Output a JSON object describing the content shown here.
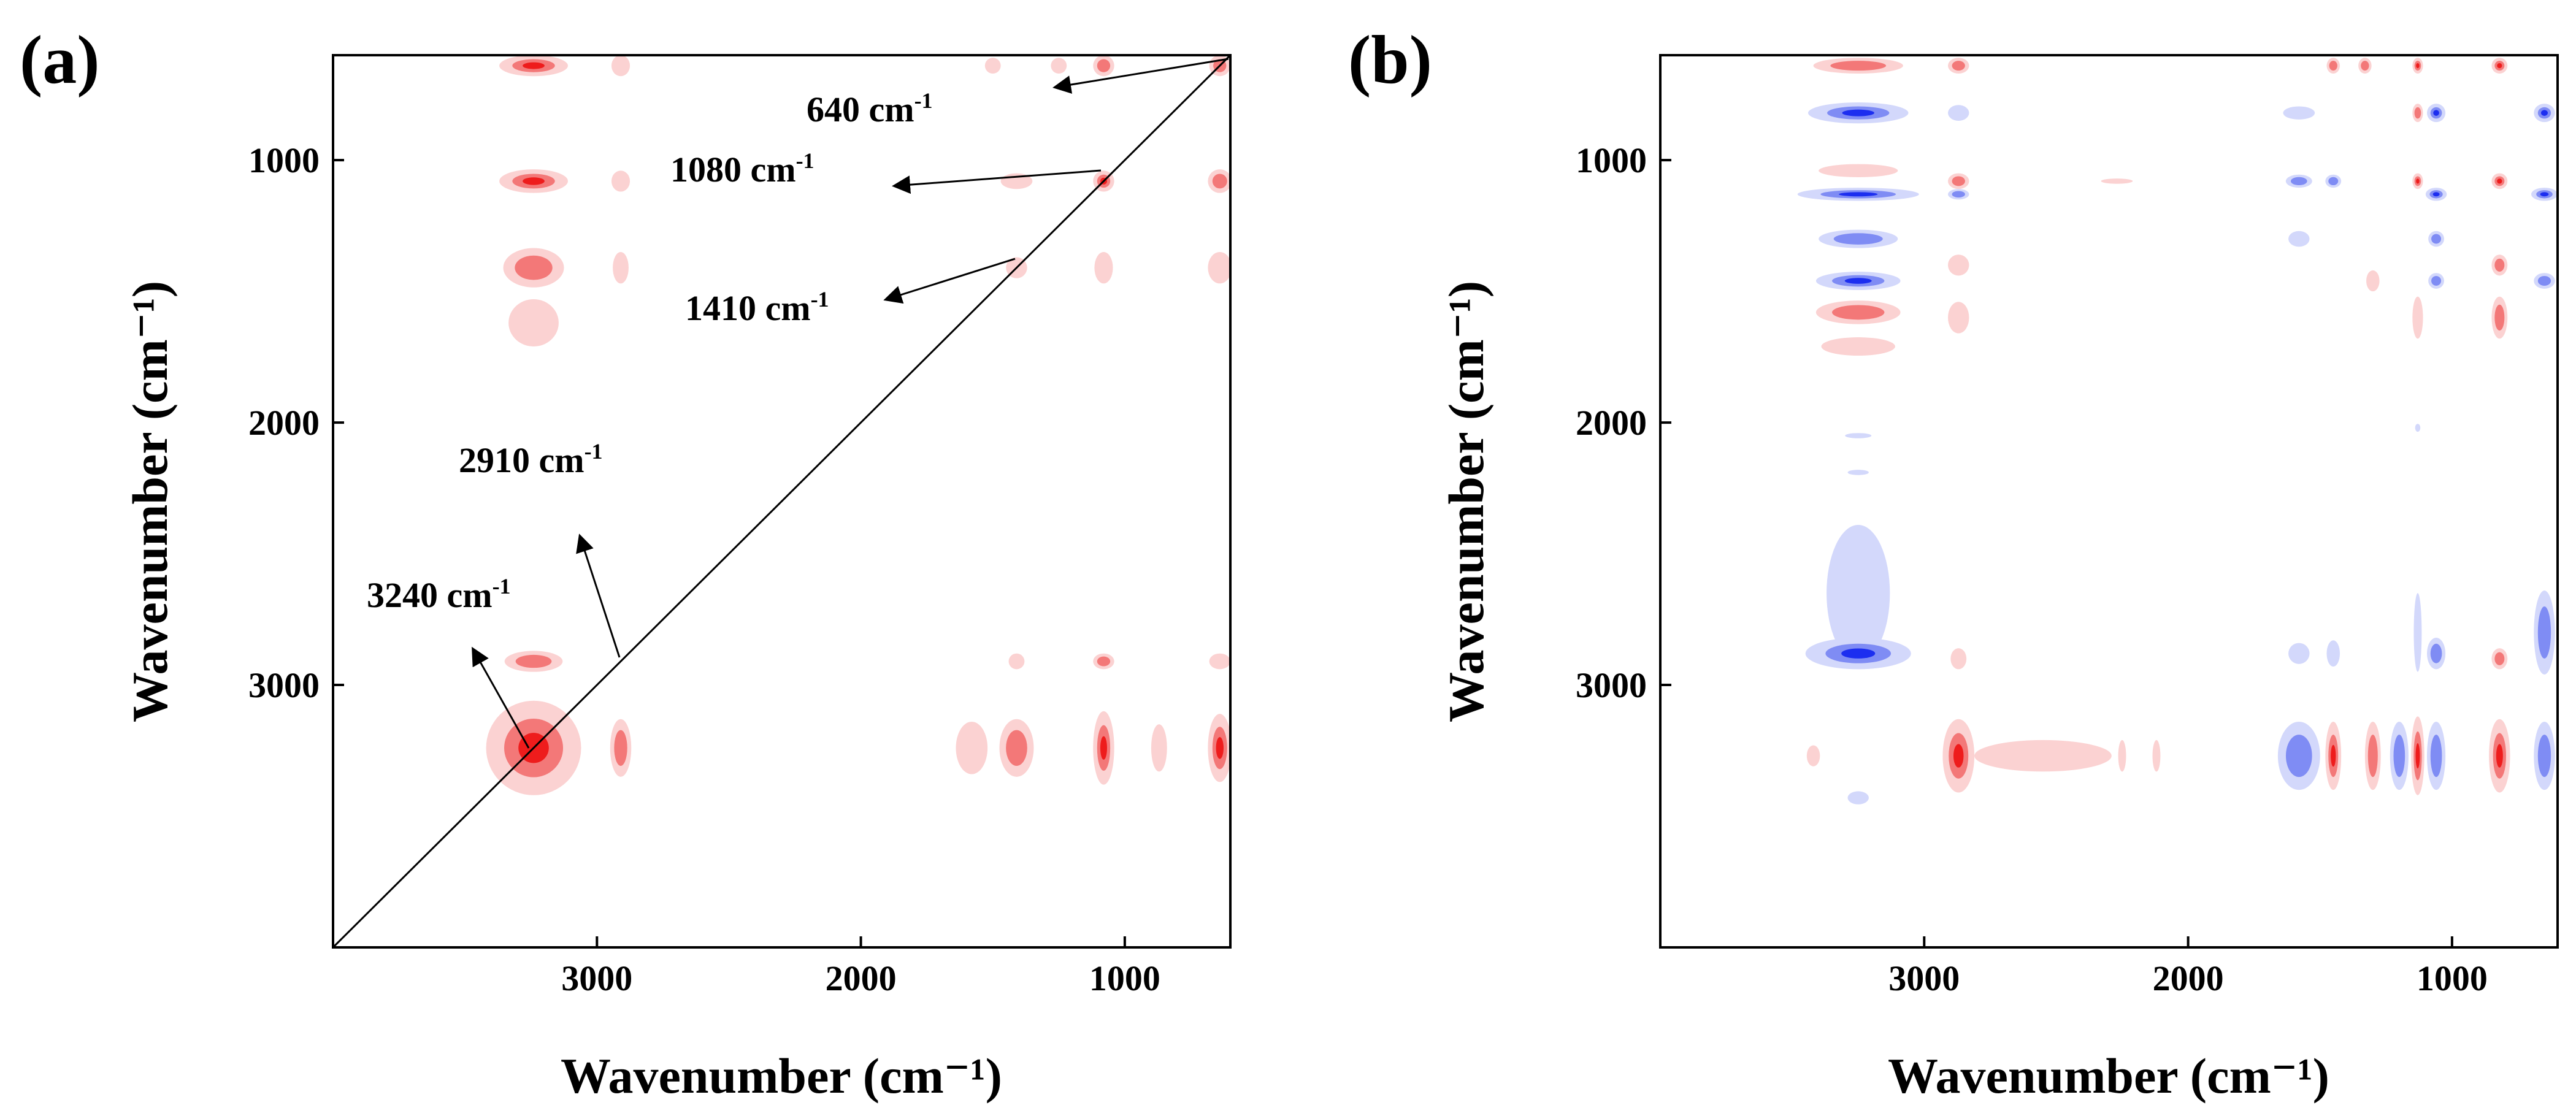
{
  "figure": {
    "panel_a_label": "(a)",
    "panel_b_label": "(b)"
  },
  "colors": {
    "positive_strong": "#ee1c1c",
    "positive_mid": "#f37878",
    "positive_light": "#fbd2d2",
    "negative_strong": "#1c2ef0",
    "negative_mid": "#7f8cf4",
    "negative_light": "#d3d8fb",
    "axis": "#000000",
    "background": "#ffffff"
  },
  "chart_data": [
    {
      "type": "heatmap",
      "subtype": "2D correlation synchronous map",
      "panel": "(a)",
      "xlabel": "Wavenumber (cm⁻¹)",
      "ylabel": "Wavenumber (cm⁻¹)",
      "xlim": [
        4000,
        600
      ],
      "ylim": [
        600,
        4000
      ],
      "xticks": [
        3000,
        2000,
        1000
      ],
      "yticks": [
        1000,
        2000,
        3000
      ],
      "xtick_labels": [
        "3000",
        "2000",
        "1000"
      ],
      "ytick_labels": [
        "1000",
        "2000",
        "3000"
      ],
      "diagonal": true,
      "annotations": [
        {
          "text": "640 cm",
          "sup": "-1",
          "peak": 640
        },
        {
          "text": "1080 cm",
          "sup": "-1",
          "peak": 1080
        },
        {
          "text": "1410 cm",
          "sup": "-1",
          "peak": 1410
        },
        {
          "text": "2910 cm",
          "sup": "-1",
          "peak": 2910
        },
        {
          "text": "3240 cm",
          "sup": "-1",
          "peak": 3240
        }
      ],
      "peaks": [
        3240,
        2910,
        1410,
        1080,
        640
      ],
      "cross_peaks": [
        {
          "x": 3240,
          "y": 3240,
          "sign": "+",
          "level": 3,
          "wx": 180,
          "wy": 180
        },
        {
          "x": 640,
          "y": 3240,
          "sign": "+",
          "level": 3,
          "wx": 45,
          "wy": 130
        },
        {
          "x": 1080,
          "y": 3240,
          "sign": "+",
          "level": 3,
          "wx": 40,
          "wy": 140
        },
        {
          "x": 1410,
          "y": 3240,
          "sign": "+",
          "level": 2,
          "wx": 65,
          "wy": 110
        },
        {
          "x": 1580,
          "y": 3240,
          "sign": "+",
          "level": 1,
          "wx": 60,
          "wy": 100
        },
        {
          "x": 2910,
          "y": 3240,
          "sign": "+",
          "level": 2,
          "wx": 40,
          "wy": 110
        },
        {
          "x": 870,
          "y": 3240,
          "sign": "+",
          "level": 1,
          "wx": 30,
          "wy": 90
        },
        {
          "x": 3240,
          "y": 640,
          "sign": "+",
          "level": 3,
          "wx": 130,
          "wy": 40
        },
        {
          "x": 3240,
          "y": 1080,
          "sign": "+",
          "level": 3,
          "wx": 130,
          "wy": 45
        },
        {
          "x": 3240,
          "y": 1410,
          "sign": "+",
          "level": 2,
          "wx": 115,
          "wy": 75
        },
        {
          "x": 3240,
          "y": 1620,
          "sign": "+",
          "level": 1,
          "wx": 95,
          "wy": 90
        },
        {
          "x": 3240,
          "y": 2910,
          "sign": "+",
          "level": 2,
          "wx": 110,
          "wy": 40
        },
        {
          "x": 2910,
          "y": 640,
          "sign": "+",
          "level": 1,
          "wx": 35,
          "wy": 40
        },
        {
          "x": 2910,
          "y": 1080,
          "sign": "+",
          "level": 1,
          "wx": 35,
          "wy": 40
        },
        {
          "x": 2910,
          "y": 1410,
          "sign": "+",
          "level": 1,
          "wx": 30,
          "wy": 60
        },
        {
          "x": 1080,
          "y": 640,
          "sign": "+",
          "level": 2,
          "wx": 40,
          "wy": 40
        },
        {
          "x": 640,
          "y": 640,
          "sign": "+",
          "level": 2,
          "wx": 40,
          "wy": 40
        },
        {
          "x": 640,
          "y": 1080,
          "sign": "+",
          "level": 2,
          "wx": 45,
          "wy": 45
        },
        {
          "x": 1080,
          "y": 1080,
          "sign": "+",
          "level": 3,
          "wx": 40,
          "wy": 40
        },
        {
          "x": 1410,
          "y": 1080,
          "sign": "+",
          "level": 1,
          "wx": 60,
          "wy": 30
        },
        {
          "x": 640,
          "y": 1410,
          "sign": "+",
          "level": 1,
          "wx": 45,
          "wy": 60
        },
        {
          "x": 1080,
          "y": 1410,
          "sign": "+",
          "level": 1,
          "wx": 35,
          "wy": 60
        },
        {
          "x": 1410,
          "y": 1410,
          "sign": "+",
          "level": 1,
          "wx": 40,
          "wy": 40
        },
        {
          "x": 1080,
          "y": 2910,
          "sign": "+",
          "level": 2,
          "wx": 40,
          "wy": 30
        },
        {
          "x": 640,
          "y": 2910,
          "sign": "+",
          "level": 1,
          "wx": 40,
          "wy": 30
        },
        {
          "x": 1410,
          "y": 2910,
          "sign": "+",
          "level": 1,
          "wx": 30,
          "wy": 30
        },
        {
          "x": 1250,
          "y": 640,
          "sign": "+",
          "level": 1,
          "wx": 30,
          "wy": 30
        },
        {
          "x": 1500,
          "y": 640,
          "sign": "+",
          "level": 1,
          "wx": 30,
          "wy": 30
        }
      ]
    },
    {
      "type": "heatmap",
      "subtype": "2D correlation asynchronous map",
      "panel": "(b)",
      "xlabel": "Wavenumber (cm⁻¹)",
      "ylabel": "Wavenumber (cm⁻¹)",
      "xlim": [
        4000,
        600
      ],
      "ylim": [
        600,
        4000
      ],
      "xticks": [
        3000,
        2000,
        1000
      ],
      "yticks": [
        1000,
        2000,
        3000
      ],
      "xtick_labels": [
        "3000",
        "2000",
        "1000"
      ],
      "ytick_labels": [
        "1000",
        "2000",
        "3000"
      ],
      "diagonal": false,
      "cross_peaks": [
        {
          "x": 3250,
          "y": 640,
          "sign": "+",
          "level": 2,
          "wx": 170,
          "wy": 30
        },
        {
          "x": 3250,
          "y": 820,
          "sign": "-",
          "level": 3,
          "wx": 190,
          "wy": 40
        },
        {
          "x": 3250,
          "y": 1040,
          "sign": "+",
          "level": 1,
          "wx": 150,
          "wy": 25
        },
        {
          "x": 3250,
          "y": 1130,
          "sign": "-",
          "level": 3,
          "wx": 230,
          "wy": 25
        },
        {
          "x": 3250,
          "y": 1300,
          "sign": "-",
          "level": 2,
          "wx": 150,
          "wy": 35
        },
        {
          "x": 3250,
          "y": 1460,
          "sign": "-",
          "level": 3,
          "wx": 160,
          "wy": 35
        },
        {
          "x": 3250,
          "y": 1580,
          "sign": "+",
          "level": 2,
          "wx": 160,
          "wy": 45
        },
        {
          "x": 3250,
          "y": 1710,
          "sign": "+",
          "level": 1,
          "wx": 140,
          "wy": 35
        },
        {
          "x": 3250,
          "y": 2650,
          "sign": "-",
          "level": 1,
          "wx": 120,
          "wy": 260
        },
        {
          "x": 3250,
          "y": 2880,
          "sign": "-",
          "level": 3,
          "wx": 200,
          "wy": 60
        },
        {
          "x": 2870,
          "y": 640,
          "sign": "+",
          "level": 2,
          "wx": 40,
          "wy": 30
        },
        {
          "x": 2870,
          "y": 820,
          "sign": "-",
          "level": 1,
          "wx": 40,
          "wy": 30
        },
        {
          "x": 2870,
          "y": 1080,
          "sign": "+",
          "level": 2,
          "wx": 40,
          "wy": 30
        },
        {
          "x": 2870,
          "y": 1130,
          "sign": "-",
          "level": 2,
          "wx": 40,
          "wy": 20
        },
        {
          "x": 2870,
          "y": 1400,
          "sign": "+",
          "level": 1,
          "wx": 40,
          "wy": 40
        },
        {
          "x": 2870,
          "y": 1600,
          "sign": "+",
          "level": 1,
          "wx": 40,
          "wy": 60
        },
        {
          "x": 2870,
          "y": 2900,
          "sign": "+",
          "level": 1,
          "wx": 30,
          "wy": 40
        },
        {
          "x": 2870,
          "y": 3270,
          "sign": "+",
          "level": 3,
          "wx": 60,
          "wy": 140
        },
        {
          "x": 2550,
          "y": 3270,
          "sign": "+",
          "level": 1,
          "wx": 260,
          "wy": 60
        },
        {
          "x": 3420,
          "y": 3270,
          "sign": "+",
          "level": 1,
          "wx": 25,
          "wy": 40
        },
        {
          "x": 3250,
          "y": 3430,
          "sign": "-",
          "level": 1,
          "wx": 40,
          "wy": 25
        },
        {
          "x": 1580,
          "y": 3270,
          "sign": "-",
          "level": 2,
          "wx": 80,
          "wy": 130
        },
        {
          "x": 1450,
          "y": 3270,
          "sign": "+",
          "level": 3,
          "wx": 30,
          "wy": 130
        },
        {
          "x": 1300,
          "y": 3270,
          "sign": "+",
          "level": 2,
          "wx": 30,
          "wy": 130
        },
        {
          "x": 1200,
          "y": 3270,
          "sign": "-",
          "level": 2,
          "wx": 35,
          "wy": 130
        },
        {
          "x": 1130,
          "y": 3270,
          "sign": "+",
          "level": 3,
          "wx": 25,
          "wy": 150
        },
        {
          "x": 1060,
          "y": 3270,
          "sign": "-",
          "level": 2,
          "wx": 35,
          "wy": 130
        },
        {
          "x": 820,
          "y": 3270,
          "sign": "+",
          "level": 3,
          "wx": 40,
          "wy": 140
        },
        {
          "x": 650,
          "y": 3270,
          "sign": "-",
          "level": 2,
          "wx": 40,
          "wy": 130
        },
        {
          "x": 1130,
          "y": 640,
          "sign": "+",
          "level": 3,
          "wx": 20,
          "wy": 30
        },
        {
          "x": 1330,
          "y": 640,
          "sign": "+",
          "level": 2,
          "wx": 25,
          "wy": 30
        },
        {
          "x": 1450,
          "y": 640,
          "sign": "+",
          "level": 2,
          "wx": 25,
          "wy": 30
        },
        {
          "x": 820,
          "y": 640,
          "sign": "+",
          "level": 3,
          "wx": 30,
          "wy": 30
        },
        {
          "x": 1580,
          "y": 820,
          "sign": "-",
          "level": 1,
          "wx": 60,
          "wy": 25
        },
        {
          "x": 1060,
          "y": 820,
          "sign": "-",
          "level": 3,
          "wx": 35,
          "wy": 35
        },
        {
          "x": 1130,
          "y": 820,
          "sign": "+",
          "level": 2,
          "wx": 20,
          "wy": 35
        },
        {
          "x": 650,
          "y": 820,
          "sign": "-",
          "level": 3,
          "wx": 40,
          "wy": 35
        },
        {
          "x": 820,
          "y": 1080,
          "sign": "+",
          "level": 3,
          "wx": 30,
          "wy": 30
        },
        {
          "x": 1130,
          "y": 1080,
          "sign": "+",
          "level": 3,
          "wx": 20,
          "wy": 30
        },
        {
          "x": 1450,
          "y": 1080,
          "sign": "-",
          "level": 2,
          "wx": 30,
          "wy": 25
        },
        {
          "x": 1580,
          "y": 1080,
          "sign": "-",
          "level": 2,
          "wx": 50,
          "wy": 25
        },
        {
          "x": 650,
          "y": 1130,
          "sign": "-",
          "level": 3,
          "wx": 50,
          "wy": 25
        },
        {
          "x": 1060,
          "y": 1130,
          "sign": "-",
          "level": 3,
          "wx": 40,
          "wy": 25
        },
        {
          "x": 1580,
          "y": 1300,
          "sign": "-",
          "level": 1,
          "wx": 40,
          "wy": 30
        },
        {
          "x": 1060,
          "y": 1300,
          "sign": "-",
          "level": 2,
          "wx": 30,
          "wy": 30
        },
        {
          "x": 820,
          "y": 1400,
          "sign": "+",
          "level": 2,
          "wx": 30,
          "wy": 40
        },
        {
          "x": 1060,
          "y": 1460,
          "sign": "-",
          "level": 2,
          "wx": 30,
          "wy": 30
        },
        {
          "x": 650,
          "y": 1460,
          "sign": "-",
          "level": 2,
          "wx": 40,
          "wy": 30
        },
        {
          "x": 1300,
          "y": 1460,
          "sign": "+",
          "level": 1,
          "wx": 25,
          "wy": 40
        },
        {
          "x": 820,
          "y": 1600,
          "sign": "+",
          "level": 2,
          "wx": 30,
          "wy": 80
        },
        {
          "x": 1130,
          "y": 1600,
          "sign": "+",
          "level": 1,
          "wx": 20,
          "wy": 80
        },
        {
          "x": 1060,
          "y": 2880,
          "sign": "-",
          "level": 2,
          "wx": 35,
          "wy": 60
        },
        {
          "x": 1130,
          "y": 2800,
          "sign": "-",
          "level": 1,
          "wx": 15,
          "wy": 150
        },
        {
          "x": 820,
          "y": 2900,
          "sign": "+",
          "level": 2,
          "wx": 30,
          "wy": 40
        },
        {
          "x": 650,
          "y": 2800,
          "sign": "-",
          "level": 2,
          "wx": 40,
          "wy": 160
        },
        {
          "x": 1450,
          "y": 2880,
          "sign": "-",
          "level": 1,
          "wx": 25,
          "wy": 50
        },
        {
          "x": 1580,
          "y": 2880,
          "sign": "-",
          "level": 1,
          "wx": 40,
          "wy": 40
        },
        {
          "x": 2250,
          "y": 3270,
          "sign": "+",
          "level": 1,
          "wx": 15,
          "wy": 60
        },
        {
          "x": 2120,
          "y": 3270,
          "sign": "+",
          "level": 1,
          "wx": 15,
          "wy": 60
        },
        {
          "x": 2270,
          "y": 1080,
          "sign": "+",
          "level": 1,
          "wx": 60,
          "wy": 10
        },
        {
          "x": 3250,
          "y": 2050,
          "sign": "-",
          "level": 1,
          "wx": 50,
          "wy": 10
        },
        {
          "x": 3250,
          "y": 2190,
          "sign": "-",
          "level": 1,
          "wx": 40,
          "wy": 10
        },
        {
          "x": 1130,
          "y": 2020,
          "sign": "-",
          "level": 1,
          "wx": 10,
          "wy": 15
        }
      ]
    }
  ]
}
